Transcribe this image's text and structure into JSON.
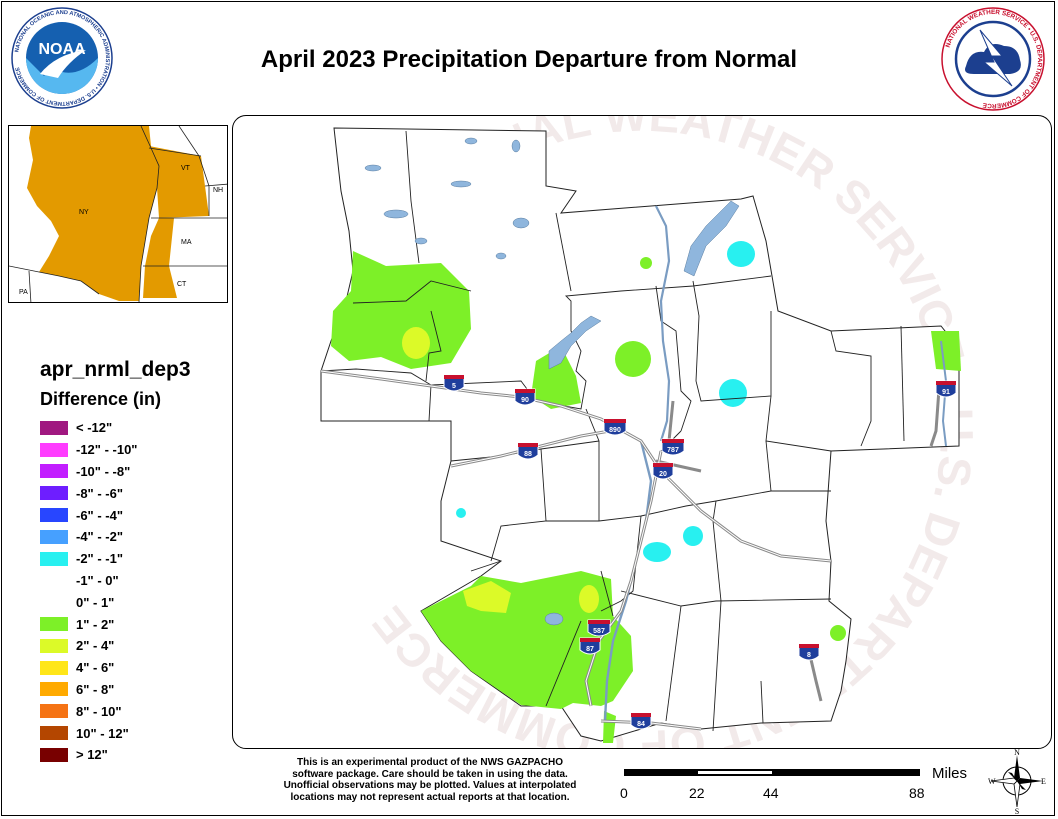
{
  "title": "April 2023 Precipitation Departure from Normal",
  "logos": {
    "left_text": "NOAA",
    "left_ring_text": "NATIONAL OCEANIC AND ATMOSPHERIC ADMINISTRATION • U.S. DEPARTMENT OF COMMERCE",
    "right_ring_text": "NATIONAL WEATHER SERVICE • U.S. DEPARTMENT OF COMMERCE",
    "watermark_text": "NATIONAL WEATHER SERVICE • U.S. DEPARTMENT OF COMMERCE"
  },
  "inset": {
    "states": [
      "VT",
      "NH",
      "NY",
      "MA",
      "CT",
      "PA"
    ],
    "highlight_color": "#E39A00"
  },
  "legend": {
    "variable": "apr_nrml_dep3",
    "title": "Difference (in)",
    "items": [
      {
        "label": "< -12\"",
        "color": "#A01880"
      },
      {
        "label": "-12\" - -10\"",
        "color": "#FF3CFF"
      },
      {
        "label": "-10\" - -8\"",
        "color": "#C21EFF"
      },
      {
        "label": "-8\" - -6\"",
        "color": "#6E1EFF"
      },
      {
        "label": "-6\" - -4\"",
        "color": "#2846FF"
      },
      {
        "label": "-4\" - -2\"",
        "color": "#46A0FF"
      },
      {
        "label": "-2\" - -1\"",
        "color": "#28F0F0"
      },
      {
        "label": "-1\" - 0\"",
        "color": "#FFFFFF"
      },
      {
        "label": "0\" - 1\"",
        "color": "#FFFFFF"
      },
      {
        "label": "1\" - 2\"",
        "color": "#7DF028"
      },
      {
        "label": "2\" - 4\"",
        "color": "#DCFA28"
      },
      {
        "label": "4\" - 6\"",
        "color": "#FFE619"
      },
      {
        "label": "6\" - 8\"",
        "color": "#FFAA00"
      },
      {
        "label": "8\" - 10\"",
        "color": "#F57314"
      },
      {
        "label": "10\" - 12\"",
        "color": "#B44600"
      },
      {
        "label": "> 12\"",
        "color": "#780000"
      }
    ]
  },
  "highways": [
    "5",
    "90",
    "890",
    "88",
    "787",
    "20",
    "91",
    "587",
    "87",
    "84",
    "8"
  ],
  "disclaimer": [
    "This is an experimental product of the NWS GAZPACHO",
    "software package. Care should be taken in using the data.",
    "Unofficial observations may be plotted. Values at interpolated",
    "locations may not represent actual reports at that location."
  ],
  "scale": {
    "labels": [
      "0",
      "22",
      "44",
      "88"
    ],
    "unit": "Miles"
  },
  "compass": {
    "n": "N",
    "s": "S",
    "e": "E",
    "w": "W"
  }
}
